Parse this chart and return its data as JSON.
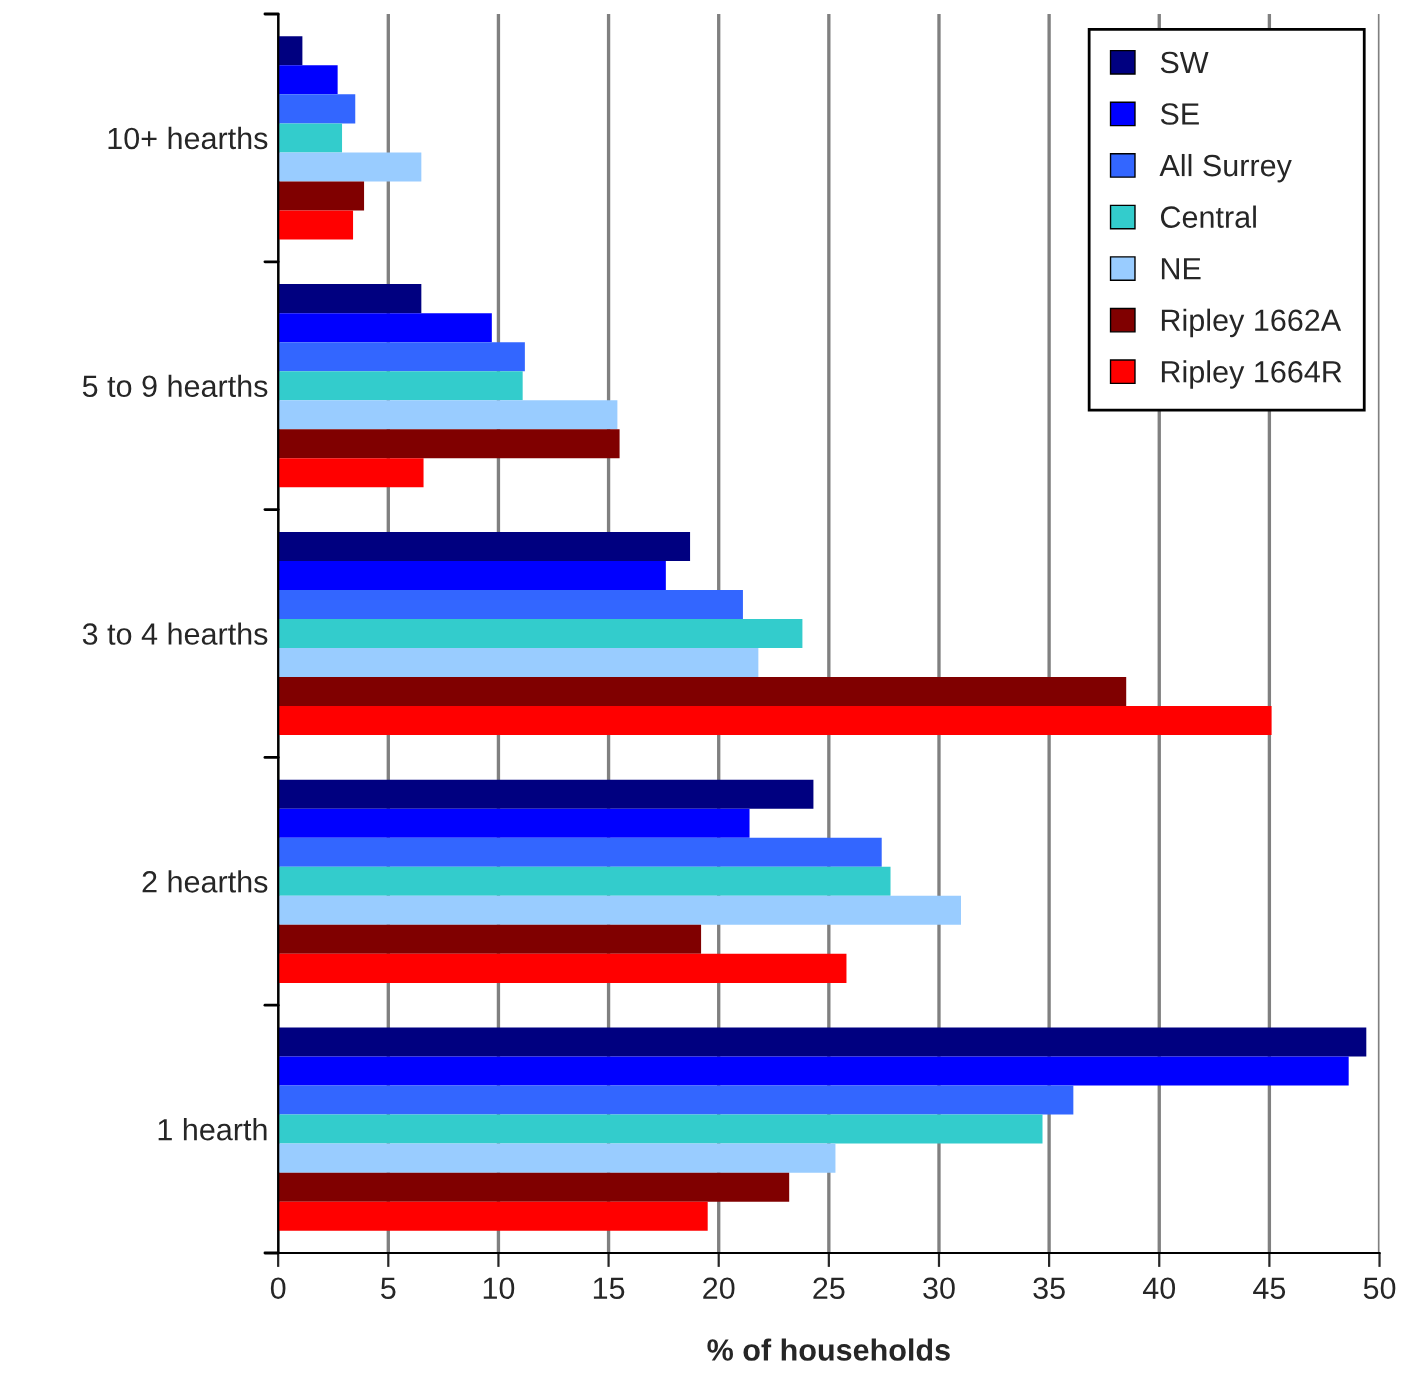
{
  "chart_data": {
    "type": "bar",
    "orientation": "horizontal",
    "xlabel": "% of households",
    "categories": [
      "10+ hearths",
      "5 to 9 hearths",
      "3 to 4 hearths",
      "2 hearths",
      "1 hearth"
    ],
    "series": [
      {
        "name": "SW",
        "color": "#000080",
        "values": [
          1.1,
          6.5,
          18.7,
          24.3,
          49.4
        ]
      },
      {
        "name": "SE",
        "color": "#0000ff",
        "values": [
          2.7,
          9.7,
          17.6,
          21.4,
          48.6
        ]
      },
      {
        "name": "All Surrey",
        "color": "#3366ff",
        "values": [
          3.5,
          11.2,
          21.1,
          27.4,
          36.1
        ]
      },
      {
        "name": "Central",
        "color": "#33cccc",
        "values": [
          2.9,
          11.1,
          23.8,
          27.8,
          34.7
        ]
      },
      {
        "name": "NE",
        "color": "#99ccff",
        "values": [
          6.5,
          15.4,
          21.8,
          31.0,
          25.3
        ]
      },
      {
        "name": "Ripley 1662A",
        "color": "#800000",
        "values": [
          3.9,
          15.5,
          38.5,
          19.2,
          23.2
        ]
      },
      {
        "name": "Ripley 1664R",
        "color": "#ff0000",
        "values": [
          3.4,
          6.6,
          45.1,
          25.8,
          19.5
        ]
      }
    ],
    "xlim": [
      0,
      50
    ],
    "xticks": [
      0,
      5,
      10,
      15,
      20,
      25,
      30,
      35,
      40,
      45,
      50
    ],
    "grid": "x",
    "legend": "top right"
  }
}
